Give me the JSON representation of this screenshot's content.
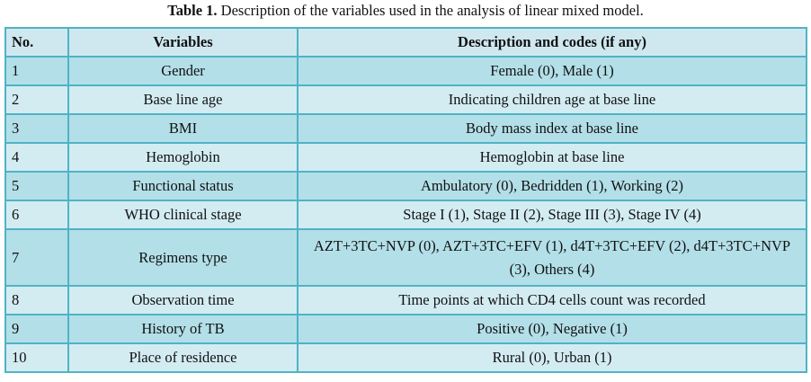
{
  "caption": {
    "label": "Table 1.",
    "text": " Description of the variables used in the analysis of linear mixed model."
  },
  "table": {
    "headers": [
      "No.",
      "Variables",
      "Description and codes (if any)"
    ],
    "rows": [
      {
        "no": "1",
        "variable": "Gender",
        "description": "Female (0), Male (1)"
      },
      {
        "no": "2",
        "variable": "Base line age",
        "description": "Indicating children age at base line"
      },
      {
        "no": "3",
        "variable": "BMI",
        "description": "Body mass index at base line"
      },
      {
        "no": "4",
        "variable": "Hemoglobin",
        "description": "Hemoglobin at base line"
      },
      {
        "no": "5",
        "variable": "Functional status",
        "description": "Ambulatory (0), Bedridden (1), Working (2)"
      },
      {
        "no": "6",
        "variable": "WHO clinical stage",
        "description": "Stage I (1), Stage II (2), Stage III (3), Stage IV (4)"
      },
      {
        "no": "7",
        "variable": "Regimens type",
        "description": "AZT+3TC+NVP (0), AZT+3TC+EFV (1), d4T+3TC+EFV (2), d4T+3TC+NVP (3), Others (4)"
      },
      {
        "no": "8",
        "variable": "Observation time",
        "description": "Time points at which CD4 cells count was recorded"
      },
      {
        "no": "9",
        "variable": "History of TB",
        "description": "Positive (0), Negative (1)"
      },
      {
        "no": "10",
        "variable": "Place of residence",
        "description": "Rural (0), Urban (1)"
      }
    ]
  },
  "colors": {
    "border": "#4fb3c5",
    "header_bg": "#cfe8f0",
    "row_odd_bg": "#b3dfe8",
    "row_even_bg": "#d3ecf2"
  }
}
